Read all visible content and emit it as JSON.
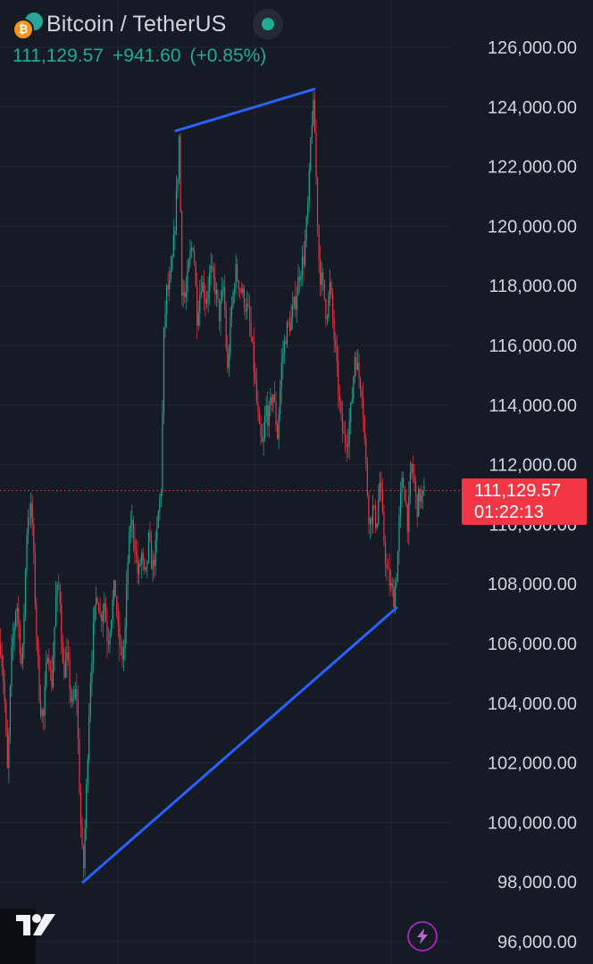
{
  "header": {
    "symbol_title": "Bitcoin / TetherUS",
    "base_icon_glyph": "₿",
    "base_icon": "bitcoin-coin-icon",
    "quote_icon": "tether-coin-icon",
    "last_price": "111,129.57",
    "change": "+941.60",
    "change_pct": "(+0.85%)",
    "market_status_color": "#22ab94"
  },
  "price_label": {
    "price": "111,129.57",
    "countdown": "01:22:13",
    "color": "#f23645"
  },
  "toolbar": {
    "flash_icon": "lightning-icon",
    "logo": "tradingview-logo"
  },
  "colors": {
    "background": "#161a25",
    "grid": "#232733",
    "up": "#22ab94",
    "down": "#f23645",
    "trendline": "#2962ff",
    "axis_text": "#d1d4dc",
    "quote_text": "#22ab94"
  },
  "chart_data": {
    "type": "candlestick",
    "title": "Bitcoin / TetherUS",
    "y_axis": {
      "side": "right",
      "range": [
        95500,
        127000
      ],
      "ticks": [
        96000,
        98000,
        100000,
        102000,
        104000,
        106000,
        108000,
        110000,
        112000,
        114000,
        116000,
        118000,
        120000,
        122000,
        124000,
        126000
      ],
      "tick_labels": [
        "96,000.00",
        "98,000.00",
        "100,000.00",
        "102,000.00",
        "104,000.00",
        "106,000.00",
        "108,000.00",
        "110,000.00",
        "112,000.00",
        "114,000.00",
        "116,000.00",
        "118,000.00",
        "120,000.00",
        "122,000.00",
        "124,000.00",
        "126,000.00"
      ]
    },
    "grid": true,
    "current_price_line": 111129.57,
    "price_path": [
      [
        0,
        106000
      ],
      [
        4,
        104500
      ],
      [
        8,
        101500
      ],
      [
        12,
        105500
      ],
      [
        18,
        107500
      ],
      [
        24,
        105000
      ],
      [
        30,
        110300
      ],
      [
        35,
        110500
      ],
      [
        40,
        106500
      ],
      [
        44,
        104000
      ],
      [
        48,
        103500
      ],
      [
        53,
        106000
      ],
      [
        57,
        104500
      ],
      [
        62,
        107500
      ],
      [
        66,
        108000
      ],
      [
        70,
        105000
      ],
      [
        75,
        105500
      ],
      [
        80,
        103800
      ],
      [
        85,
        104500
      ],
      [
        88,
        101500
      ],
      [
        91,
        99000
      ],
      [
        93,
        98500
      ],
      [
        96,
        101000
      ],
      [
        100,
        104500
      ],
      [
        104,
        106500
      ],
      [
        108,
        107800
      ],
      [
        112,
        106800
      ],
      [
        116,
        107500
      ],
      [
        120,
        106000
      ],
      [
        124,
        107000
      ],
      [
        128,
        108000
      ],
      [
        132,
        106200
      ],
      [
        136,
        105500
      ],
      [
        139,
        106000
      ],
      [
        142,
        108500
      ],
      [
        146,
        110200
      ],
      [
        150,
        109500
      ],
      [
        154,
        108200
      ],
      [
        158,
        109000
      ],
      [
        162,
        108000
      ],
      [
        166,
        109500
      ],
      [
        170,
        108500
      ],
      [
        174,
        109200
      ],
      [
        177,
        110500
      ],
      [
        180,
        111300
      ],
      [
        183,
        116500
      ],
      [
        186,
        117800
      ],
      [
        190,
        118000
      ],
      [
        194,
        119500
      ],
      [
        198,
        121500
      ],
      [
        200,
        123000
      ],
      [
        203,
        118000
      ],
      [
        207,
        117500
      ],
      [
        212,
        119000
      ],
      [
        216,
        119500
      ],
      [
        220,
        117000
      ],
      [
        225,
        118200
      ],
      [
        230,
        117500
      ],
      [
        235,
        118500
      ],
      [
        240,
        118000
      ],
      [
        245,
        117000
      ],
      [
        250,
        118000
      ],
      [
        254,
        115000
      ],
      [
        258,
        117000
      ],
      [
        263,
        118500
      ],
      [
        268,
        118000
      ],
      [
        273,
        117500
      ],
      [
        278,
        117000
      ],
      [
        283,
        115500
      ],
      [
        287,
        114000
      ],
      [
        290,
        113000
      ],
      [
        294,
        112500
      ],
      [
        297,
        114000
      ],
      [
        300,
        113500
      ],
      [
        305,
        114500
      ],
      [
        310,
        113000
      ],
      [
        315,
        115500
      ],
      [
        320,
        116500
      ],
      [
        325,
        116800
      ],
      [
        330,
        117500
      ],
      [
        335,
        118500
      ],
      [
        340,
        119000
      ],
      [
        345,
        121000
      ],
      [
        348,
        123500
      ],
      [
        351,
        124000
      ],
      [
        354,
        121000
      ],
      [
        357,
        118500
      ],
      [
        361,
        118000
      ],
      [
        365,
        117000
      ],
      [
        369,
        118000
      ],
      [
        373,
        116500
      ],
      [
        377,
        115000
      ],
      [
        381,
        113500
      ],
      [
        385,
        112800
      ],
      [
        389,
        113000
      ],
      [
        393,
        114000
      ],
      [
        397,
        115800
      ],
      [
        401,
        115000
      ],
      [
        405,
        114500
      ],
      [
        409,
        112000
      ],
      [
        413,
        110000
      ],
      [
        417,
        110500
      ],
      [
        421,
        110000
      ],
      [
        425,
        111500
      ],
      [
        428,
        110000
      ],
      [
        432,
        108500
      ],
      [
        436,
        108000
      ],
      [
        440,
        107500
      ],
      [
        444,
        108500
      ],
      [
        447,
        110500
      ],
      [
        450,
        111500
      ],
      [
        453,
        111000
      ],
      [
        456,
        110000
      ],
      [
        460,
        112000
      ],
      [
        463,
        111500
      ],
      [
        466,
        110500
      ],
      [
        469,
        111000
      ],
      [
        472,
        110800
      ],
      [
        475,
        111130
      ]
    ],
    "trendlines": [
      {
        "name": "upper-trendline",
        "points": [
          [
            197,
            123200
          ],
          [
            352,
            124600
          ]
        ],
        "color": "#2962ff"
      },
      {
        "name": "lower-trendline",
        "points": [
          [
            93,
            98000
          ],
          [
            444,
            107200
          ]
        ],
        "color": "#2962ff"
      }
    ]
  }
}
